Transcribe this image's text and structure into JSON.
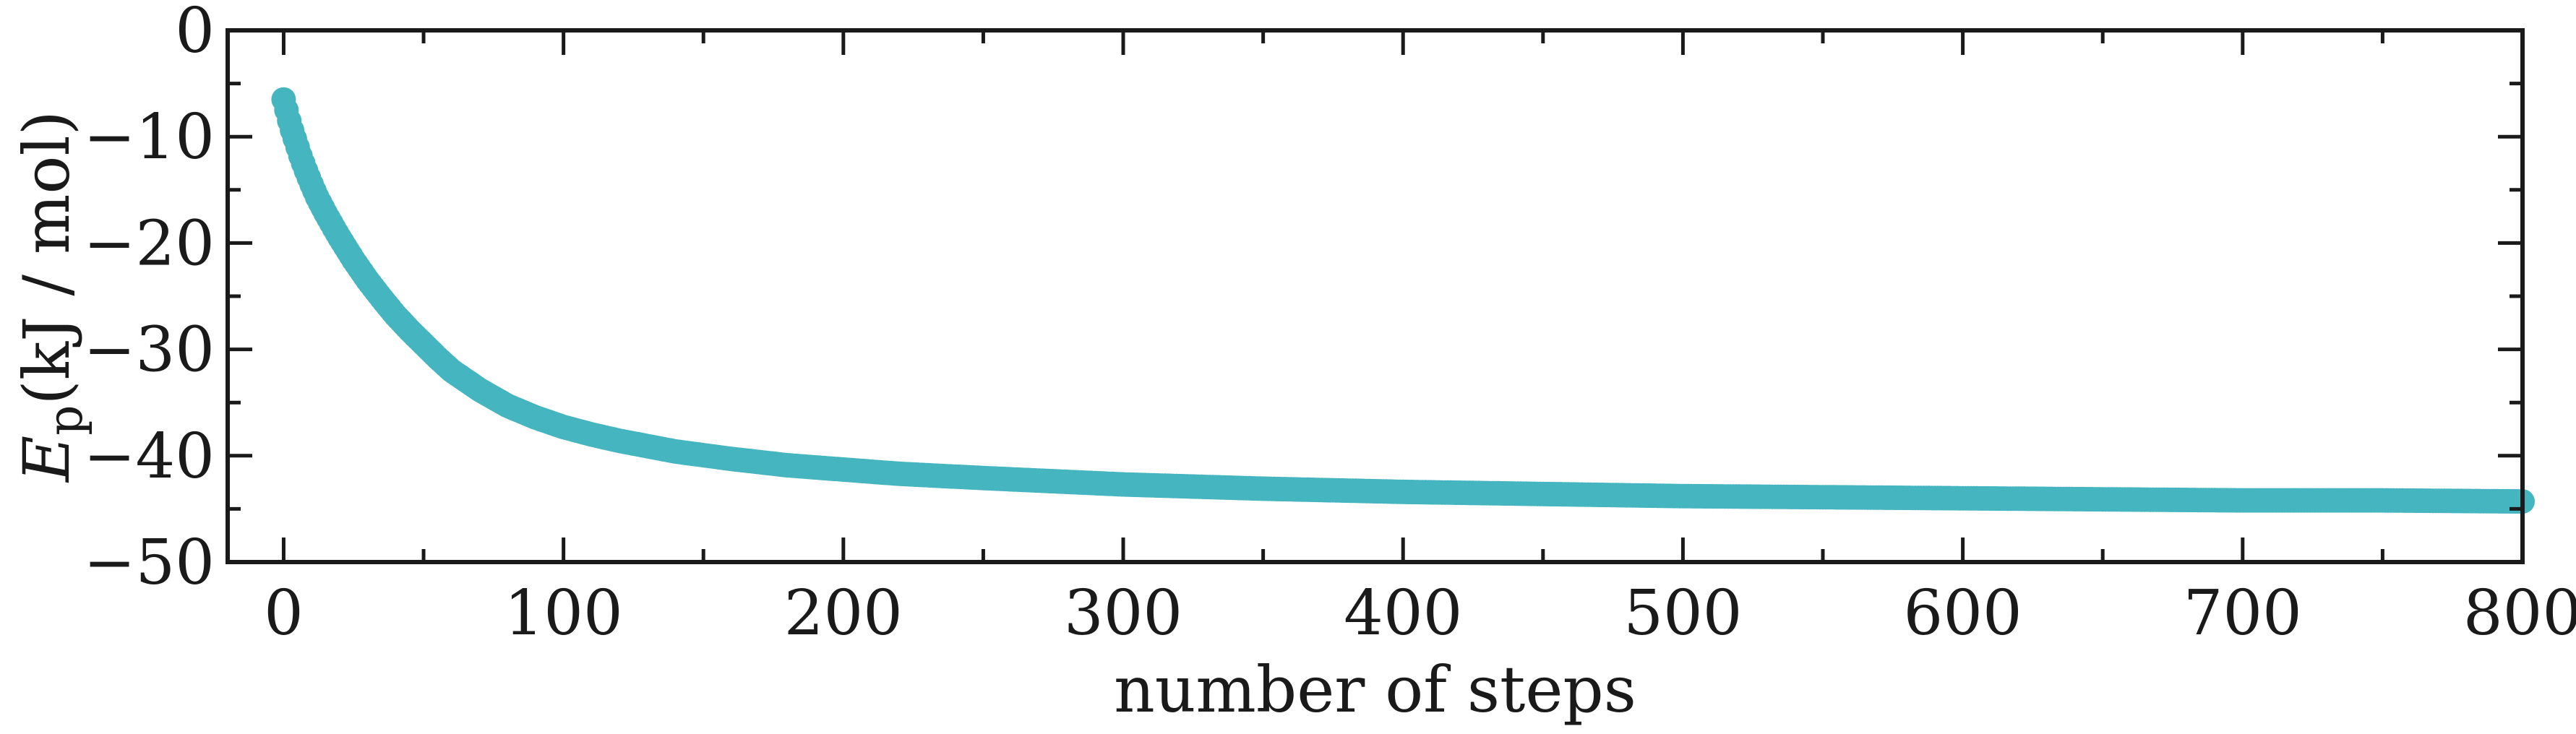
{
  "chart_data": {
    "type": "scatter",
    "xlabel": "number of steps",
    "ylabel": {
      "symbol": "E",
      "subscript": "p",
      "unit": "(kJ / mol)"
    },
    "xlim": [
      -20,
      800
    ],
    "ylim": [
      -50,
      0
    ],
    "xticks": [
      0,
      100,
      200,
      300,
      400,
      500,
      600,
      700,
      800
    ],
    "yticks": [
      0,
      -10,
      -20,
      -30,
      -40,
      -50
    ],
    "xtick_labels": [
      "0",
      "100",
      "200",
      "300",
      "400",
      "500",
      "600",
      "700",
      "800"
    ],
    "ytick_labels": [
      "0",
      "−10",
      "−20",
      "−30",
      "−40",
      "−50"
    ],
    "grid": false,
    "legend": "none",
    "marker_color": "#45b5c0",
    "series": [
      {
        "points": [
          [
            0,
            -6.5
          ],
          [
            1,
            -7.5
          ],
          [
            2,
            -8.5
          ],
          [
            3,
            -9.4
          ],
          [
            4,
            -10.2
          ],
          [
            5,
            -11.0
          ],
          [
            6,
            -11.8
          ],
          [
            8,
            -13.2
          ],
          [
            10,
            -14.5
          ],
          [
            12,
            -15.7
          ],
          [
            15,
            -17.2
          ],
          [
            18,
            -18.6
          ],
          [
            20,
            -19.5
          ],
          [
            25,
            -21.6
          ],
          [
            30,
            -23.5
          ],
          [
            35,
            -25.2
          ],
          [
            40,
            -26.8
          ],
          [
            45,
            -28.2
          ],
          [
            50,
            -29.5
          ],
          [
            55,
            -30.8
          ],
          [
            60,
            -32.0
          ],
          [
            70,
            -33.8
          ],
          [
            80,
            -35.3
          ],
          [
            90,
            -36.4
          ],
          [
            100,
            -37.3
          ],
          [
            110,
            -38.0
          ],
          [
            120,
            -38.6
          ],
          [
            140,
            -39.6
          ],
          [
            160,
            -40.3
          ],
          [
            180,
            -40.9
          ],
          [
            200,
            -41.3
          ],
          [
            220,
            -41.7
          ],
          [
            250,
            -42.1
          ],
          [
            300,
            -42.7
          ],
          [
            350,
            -43.1
          ],
          [
            400,
            -43.4
          ],
          [
            450,
            -43.6
          ],
          [
            500,
            -43.8
          ],
          [
            550,
            -43.9
          ],
          [
            600,
            -44.0
          ],
          [
            650,
            -44.1
          ],
          [
            700,
            -44.2
          ],
          [
            750,
            -44.2
          ],
          [
            800,
            -44.3
          ]
        ]
      }
    ]
  }
}
